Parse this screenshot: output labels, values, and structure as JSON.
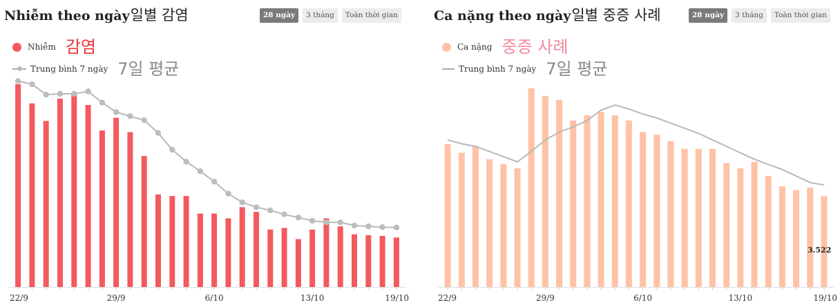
{
  "colors": {
    "infected_bar": "#f25a5f",
    "severe_bar": "#ffc2a6",
    "avg_line": "#b8b8b8",
    "avg_dot": "#bdbdbd",
    "active_tab_bg": "#7a7a7a",
    "tab_bg": "#ececec"
  },
  "left": {
    "title": "Nhiễm theo ngày",
    "title_ko": "일별 감염",
    "tabs": [
      {
        "label": "28 ngày",
        "active": true
      },
      {
        "label": "3 tháng",
        "active": false
      },
      {
        "label": "Toàn thời gian",
        "active": false
      }
    ],
    "legend": {
      "series_label": "Nhiễm",
      "series_label_ko": "감염",
      "avg_label": "Trung bình 7 ngày",
      "avg_label_ko": "7일 평균"
    }
  },
  "right": {
    "title": "Ca nặng theo ngày",
    "title_ko": "일별 중증 사례",
    "tabs": [
      {
        "label": "28 ngày",
        "active": true
      },
      {
        "label": "3 tháng",
        "active": false
      },
      {
        "label": "Toàn thời gian",
        "active": false
      }
    ],
    "legend": {
      "series_label": "Ca nặng",
      "series_label_ko": "중증 사례",
      "avg_label": "Trung bình 7 ngày",
      "avg_label_ko": "7일 평균"
    },
    "last_value_label": "3.522"
  },
  "chart_data": [
    {
      "type": "bar",
      "title": "Nhiễm theo ngày",
      "categories": [
        "22/9",
        "23/9",
        "24/9",
        "25/9",
        "26/9",
        "27/9",
        "28/9",
        "29/9",
        "30/9",
        "1/10",
        "2/10",
        "3/10",
        "4/10",
        "5/10",
        "6/10",
        "7/10",
        "8/10",
        "9/10",
        "10/10",
        "11/10",
        "12/10",
        "13/10",
        "14/10",
        "15/10",
        "16/10",
        "17/10",
        "18/10",
        "19/10"
      ],
      "tick_labels": [
        "22/9",
        "29/9",
        "6/10",
        "13/10",
        "19/10"
      ],
      "tick_indices": [
        0,
        7,
        14,
        21,
        27
      ],
      "series": [
        {
          "name": "Nhiễm",
          "kind": "bar",
          "values": [
            12700,
            11500,
            10400,
            11800,
            12100,
            11400,
            9800,
            10600,
            9700,
            8200,
            5800,
            5700,
            5700,
            4600,
            4600,
            4300,
            5000,
            4700,
            3600,
            3700,
            3000,
            3600,
            4300,
            3800,
            3300,
            3250,
            3200,
            3100
          ]
        },
        {
          "name": "Trung bình 7 ngày",
          "kind": "line",
          "values": [
            12900,
            12700,
            12050,
            12100,
            12100,
            12250,
            11550,
            10950,
            10700,
            10450,
            9650,
            8600,
            7850,
            7250,
            6600,
            5850,
            5300,
            5000,
            4800,
            4550,
            4350,
            4150,
            4050,
            4050,
            3850,
            3800,
            3750,
            3730
          ]
        }
      ],
      "ylim": [
        0,
        14000
      ],
      "xlabel": "",
      "ylabel": ""
    },
    {
      "type": "bar",
      "title": "Ca nặng theo ngày",
      "categories": [
        "22/9",
        "23/9",
        "24/9",
        "25/9",
        "26/9",
        "27/9",
        "28/9",
        "29/9",
        "30/9",
        "1/10",
        "2/10",
        "3/10",
        "4/10",
        "5/10",
        "6/10",
        "7/10",
        "8/10",
        "9/10",
        "10/10",
        "11/10",
        "12/10",
        "13/10",
        "14/10",
        "15/10",
        "16/10",
        "17/10",
        "18/10",
        "19/10"
      ],
      "tick_labels": [
        "22/9",
        "29/9",
        "6/10",
        "13/10",
        "19/10"
      ],
      "tick_indices": [
        0,
        7,
        14,
        21,
        27
      ],
      "series": [
        {
          "name": "Ca nặng",
          "kind": "bar",
          "values": [
            5530,
            5200,
            5450,
            4950,
            4760,
            4600,
            7700,
            7400,
            7250,
            6450,
            6650,
            6780,
            6650,
            6450,
            6000,
            5900,
            5650,
            5350,
            5350,
            5350,
            4800,
            4600,
            4850,
            4300,
            3900,
            3750,
            3850,
            3522
          ]
        },
        {
          "name": "Trung bình 7 ngày",
          "kind": "line",
          "values": [
            5700,
            5550,
            5450,
            5250,
            5050,
            4850,
            5250,
            5700,
            6000,
            6200,
            6450,
            6850,
            7050,
            6900,
            6700,
            6550,
            6350,
            6150,
            5950,
            5700,
            5450,
            5200,
            4950,
            4750,
            4550,
            4300,
            4050,
            3950
          ]
        }
      ],
      "ylim": [
        0,
        8500
      ],
      "data_labels": [
        {
          "index": 27,
          "text": "3.522"
        }
      ],
      "xlabel": "",
      "ylabel": ""
    }
  ]
}
